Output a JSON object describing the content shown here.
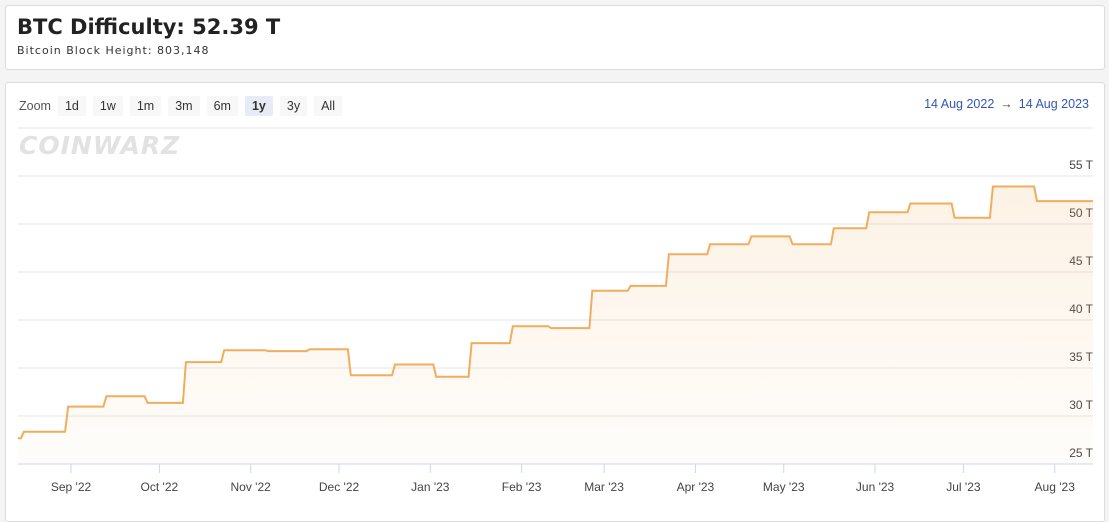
{
  "header": {
    "title": "BTC Difficulty: 52.39 T",
    "subtitle": "Bitcoin Block Height: 803,148"
  },
  "toolbar": {
    "zoom_label": "Zoom",
    "buttons": [
      "1d",
      "1w",
      "1m",
      "3m",
      "6m",
      "1y",
      "3y",
      "All"
    ],
    "selected": 5,
    "range_from": "14 Aug 2022",
    "range_arrow": "→",
    "range_to": "14 Aug 2023"
  },
  "watermark": "COINWARZ",
  "chart_data": {
    "type": "line",
    "color": "#f0ad5e",
    "grid": true,
    "area": true,
    "x": [
      "2022-08-14",
      "2022-08-15",
      "2022-08-16",
      "2022-08-30",
      "2022-08-31",
      "2022-09-12",
      "2022-09-13",
      "2022-09-26",
      "2022-09-27",
      "2022-10-09",
      "2022-10-10",
      "2022-10-22",
      "2022-10-23",
      "2022-11-06",
      "2022-11-07",
      "2022-11-20",
      "2022-11-21",
      "2022-12-04",
      "2022-12-05",
      "2022-12-19",
      "2022-12-20",
      "2023-01-02",
      "2023-01-03",
      "2023-01-14",
      "2023-01-15",
      "2023-01-28",
      "2023-01-29",
      "2023-02-10",
      "2023-02-11",
      "2023-02-24",
      "2023-02-25",
      "2023-03-09",
      "2023-03-10",
      "2023-03-22",
      "2023-03-23",
      "2023-04-05",
      "2023-04-06",
      "2023-04-19",
      "2023-04-20",
      "2023-05-03",
      "2023-05-04",
      "2023-05-17",
      "2023-05-18",
      "2023-05-29",
      "2023-05-30",
      "2023-06-12",
      "2023-06-13",
      "2023-06-27",
      "2023-06-28",
      "2023-07-10",
      "2023-07-11",
      "2023-07-25",
      "2023-07-26",
      "2023-08-14"
    ],
    "values": [
      27.69,
      27.69,
      28.35,
      28.35,
      30.98,
      30.98,
      32.05,
      32.05,
      31.36,
      31.36,
      35.61,
      35.61,
      36.84,
      36.84,
      36.76,
      36.76,
      36.95,
      36.95,
      34.24,
      34.24,
      35.36,
      35.36,
      34.09,
      34.09,
      37.59,
      37.59,
      39.35,
      39.35,
      39.16,
      39.16,
      43.05,
      43.05,
      43.55,
      43.55,
      46.84,
      46.84,
      47.89,
      47.89,
      48.71,
      48.71,
      47.89,
      47.89,
      49.55,
      49.55,
      51.23,
      51.23,
      52.14,
      52.14,
      50.65,
      50.65,
      53.91,
      53.91,
      52.39,
      52.39
    ],
    "xlim": [
      "2022-08-14",
      "2023-08-14"
    ],
    "xticks": [
      {
        "value": "2022-09-01",
        "label": "Sep '22"
      },
      {
        "value": "2022-10-01",
        "label": "Oct '22"
      },
      {
        "value": "2022-11-01",
        "label": "Nov '22"
      },
      {
        "value": "2022-12-01",
        "label": "Dec '22"
      },
      {
        "value": "2023-01-01",
        "label": "Jan '23"
      },
      {
        "value": "2023-02-01",
        "label": "Feb '23"
      },
      {
        "value": "2023-03-01",
        "label": "Mar '23"
      },
      {
        "value": "2023-04-01",
        "label": "Apr '23"
      },
      {
        "value": "2023-05-01",
        "label": "May '23"
      },
      {
        "value": "2023-06-01",
        "label": "Jun '23"
      },
      {
        "value": "2023-07-01",
        "label": "Jul '23"
      },
      {
        "value": "2023-08-01",
        "label": "Aug '23"
      }
    ],
    "ylim": [
      25,
      60
    ],
    "yticks": [
      {
        "value": 25,
        "label": "25 T"
      },
      {
        "value": 30,
        "label": "30 T"
      },
      {
        "value": 35,
        "label": "35 T"
      },
      {
        "value": 40,
        "label": "40 T"
      },
      {
        "value": 45,
        "label": "45 T"
      },
      {
        "value": 50,
        "label": "50 T"
      },
      {
        "value": 55,
        "label": "55 T"
      }
    ]
  }
}
